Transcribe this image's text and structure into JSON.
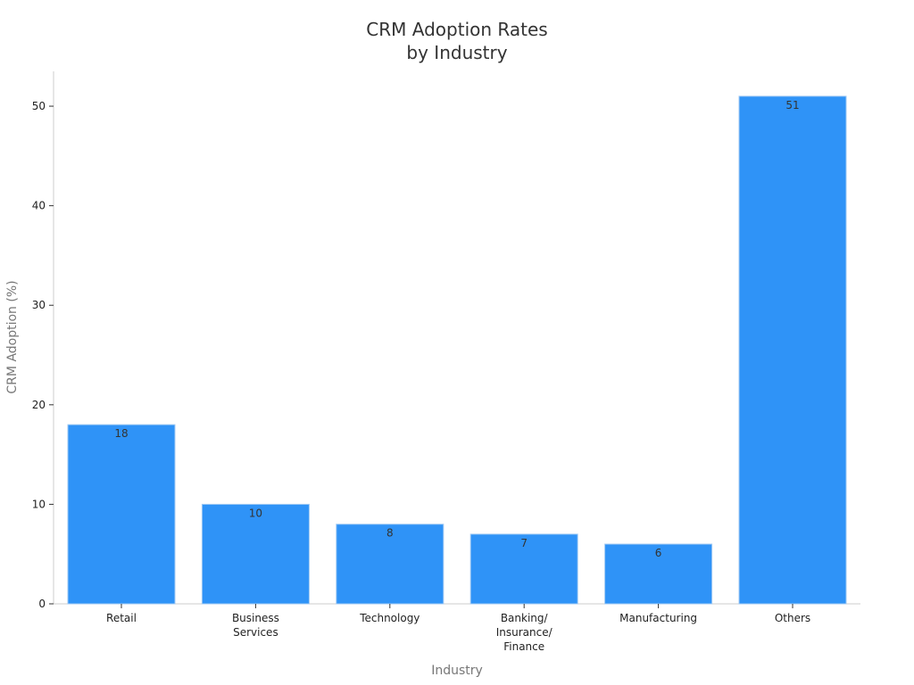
{
  "chart_data": {
    "type": "bar",
    "title_lines": [
      "CRM Adoption Rates",
      "by Industry"
    ],
    "xlabel": "Industry",
    "ylabel": "CRM Adoption (%)",
    "categories": [
      [
        "Retail"
      ],
      [
        "Business",
        "Services"
      ],
      [
        "Technology"
      ],
      [
        "Banking/",
        "Insurance/",
        "Finance"
      ],
      [
        "Manufacturing"
      ],
      [
        "Others"
      ]
    ],
    "values": [
      18,
      10,
      8,
      7,
      6,
      51
    ],
    "yticks": [
      0,
      10,
      20,
      30,
      40,
      50
    ],
    "ylim": [
      0,
      53.5
    ],
    "grid": false,
    "bar_color": "#2f93f7",
    "bar_edge_color": "#9fc9f3"
  }
}
